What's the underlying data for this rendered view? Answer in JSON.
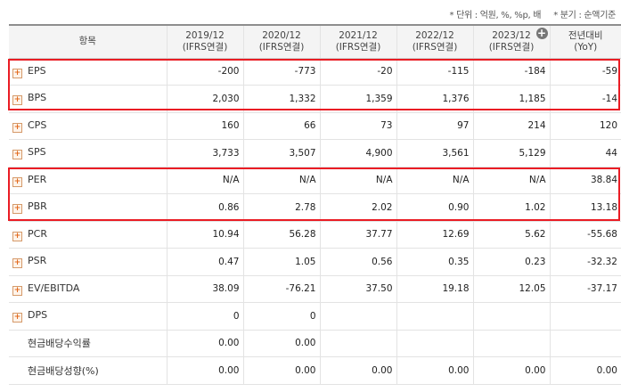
{
  "notes": {
    "unit": "* 단위 : 억원, %, %p, 배",
    "quarter": "* 분기 : 순액기준"
  },
  "header": {
    "item_label": "항목",
    "columns": [
      {
        "period": "2019/12",
        "basis": "(IFRS연결)"
      },
      {
        "period": "2020/12",
        "basis": "(IFRS연결)"
      },
      {
        "period": "2021/12",
        "basis": "(IFRS연결)"
      },
      {
        "period": "2022/12",
        "basis": "(IFRS연결)"
      },
      {
        "period": "2023/12",
        "basis": "(IFRS연결)"
      },
      {
        "period": "전년대비",
        "basis": "(YoY)"
      }
    ]
  },
  "rows": [
    {
      "label": "EPS",
      "expandable": true,
      "values": [
        "-200",
        "-773",
        "-20",
        "-115",
        "-184",
        "-59"
      ]
    },
    {
      "label": "BPS",
      "expandable": true,
      "values": [
        "2,030",
        "1,332",
        "1,359",
        "1,376",
        "1,185",
        "-14"
      ]
    },
    {
      "label": "CPS",
      "expandable": true,
      "values": [
        "160",
        "66",
        "73",
        "97",
        "214",
        "120"
      ]
    },
    {
      "label": "SPS",
      "expandable": true,
      "values": [
        "3,733",
        "3,507",
        "4,900",
        "3,561",
        "5,129",
        "44"
      ]
    },
    {
      "label": "PER",
      "expandable": true,
      "values": [
        "N/A",
        "N/A",
        "N/A",
        "N/A",
        "N/A",
        "38.84"
      ]
    },
    {
      "label": "PBR",
      "expandable": true,
      "values": [
        "0.86",
        "2.78",
        "2.02",
        "0.90",
        "1.02",
        "13.18"
      ]
    },
    {
      "label": "PCR",
      "expandable": true,
      "values": [
        "10.94",
        "56.28",
        "37.77",
        "12.69",
        "5.62",
        "-55.68"
      ]
    },
    {
      "label": "PSR",
      "expandable": true,
      "values": [
        "0.47",
        "1.05",
        "0.56",
        "0.35",
        "0.23",
        "-32.32"
      ]
    },
    {
      "label": "EV/EBITDA",
      "expandable": true,
      "values": [
        "38.09",
        "-76.21",
        "37.50",
        "19.18",
        "12.05",
        "-37.17"
      ]
    },
    {
      "label": "DPS",
      "expandable": true,
      "values": [
        "0",
        "0",
        "",
        "",
        "",
        ""
      ]
    },
    {
      "label": "현금배당수익률",
      "expandable": false,
      "values": [
        "0.00",
        "0.00",
        "",
        "",
        "",
        ""
      ]
    },
    {
      "label": "현금배당성향(%)",
      "expandable": false,
      "values": [
        "0.00",
        "0.00",
        "0.00",
        "0.00",
        "0.00",
        "0.00"
      ]
    }
  ],
  "highlight_color": "#ea1c24",
  "negative_color": "#e02020"
}
